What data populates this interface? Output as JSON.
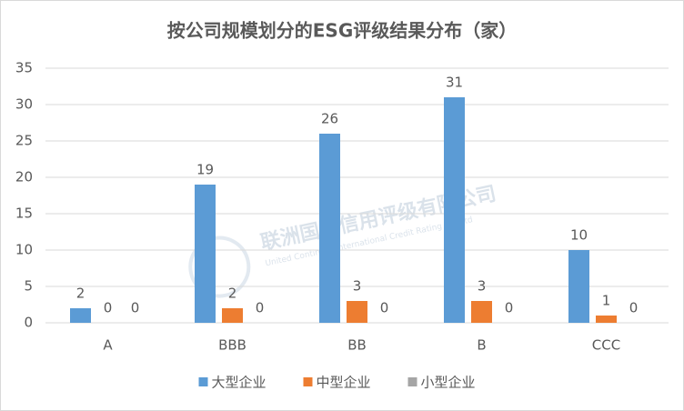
{
  "chart_data": {
    "type": "bar",
    "title": "按公司规模划分的ESG评级结果分布（家）",
    "categories": [
      "A",
      "BBB",
      "BB",
      "B",
      "CCC"
    ],
    "series": [
      {
        "name": "大型企业",
        "color": "#5b9bd5",
        "values": [
          2,
          19,
          26,
          31,
          10
        ]
      },
      {
        "name": "中型企业",
        "color": "#ed7d31",
        "values": [
          0,
          2,
          3,
          3,
          1
        ]
      },
      {
        "name": "小型企业",
        "color": "#a5a5a5",
        "values": [
          0,
          0,
          0,
          0,
          0
        ]
      }
    ],
    "ylim": [
      0,
      35
    ],
    "yticks": [
      0,
      5,
      10,
      15,
      20,
      25,
      30,
      35
    ],
    "grid": true,
    "legend": "bottom",
    "watermark": {
      "name": "联洲国际信用评级有限公司",
      "subtitle": "United Continent International Credit Rating Co.,Ltd"
    }
  }
}
